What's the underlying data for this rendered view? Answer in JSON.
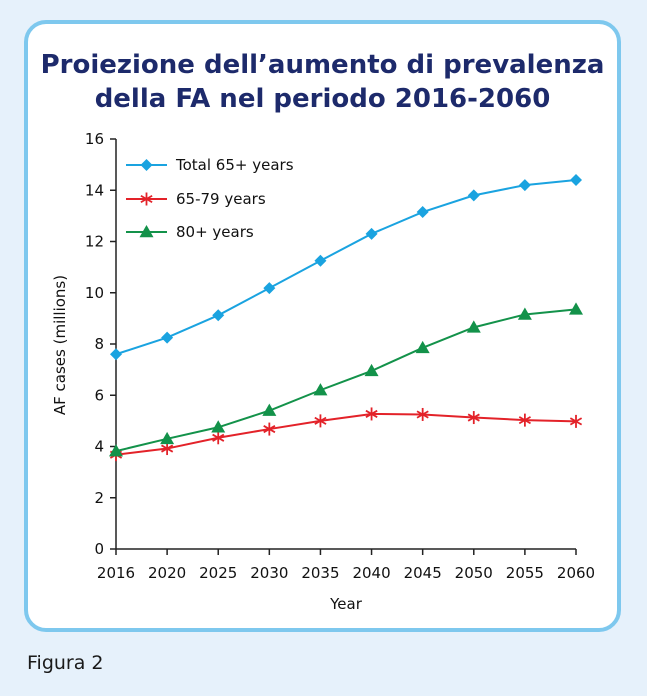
{
  "title_line1": "Proiezione dell’aumento di prevalenza",
  "title_line2": "della FA nel periodo 2016-2060",
  "caption": "Figura 2",
  "chart_data": {
    "type": "line",
    "xlabel": "Year",
    "ylabel": "AF cases (millions)",
    "x": [
      "2016",
      "2020",
      "2025",
      "2030",
      "2035",
      "2040",
      "2045",
      "2050",
      "2055",
      "2060"
    ],
    "yticks": [
      "0",
      "2",
      "4",
      "6",
      "8",
      "10",
      "12",
      "14",
      "16"
    ],
    "ylim": [
      0,
      16
    ],
    "grid": false,
    "legend_position": "top-left",
    "series": [
      {
        "name": "Total 65+ years",
        "marker": "diamond",
        "color": "#1aa3e0",
        "values": [
          7.6,
          8.25,
          9.12,
          10.18,
          11.25,
          12.3,
          13.15,
          13.8,
          14.2,
          14.4
        ]
      },
      {
        "name": "65-79 years",
        "marker": "asterisk",
        "color": "#e32229",
        "values": [
          3.68,
          3.92,
          4.34,
          4.68,
          5.0,
          5.27,
          5.25,
          5.13,
          5.03,
          4.98
        ]
      },
      {
        "name": "80+ years",
        "marker": "triangle",
        "color": "#13924a",
        "values": [
          3.82,
          4.3,
          4.75,
          5.4,
          6.2,
          6.95,
          7.85,
          8.65,
          9.15,
          9.35
        ]
      }
    ]
  }
}
